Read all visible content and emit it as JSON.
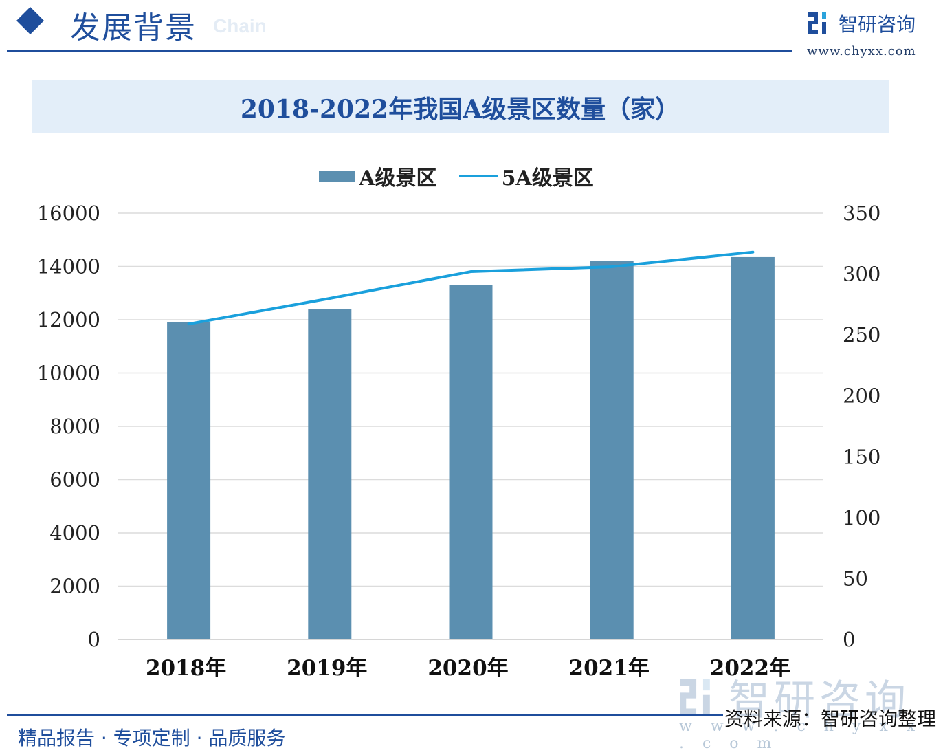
{
  "header": {
    "title": "发展背景",
    "ghost_text": "Chain",
    "brand_name": "智研咨询",
    "brand_url": "www.chyxx.com",
    "accent_color": "#1f4e9c",
    "logo_icon": "zhiyan-logo-icon"
  },
  "chart_data": {
    "type": "bar",
    "title": "2018-2022年我国A级景区数量（家）",
    "categories": [
      "2018年",
      "2019年",
      "2020年",
      "2021年",
      "2022年"
    ],
    "series": [
      {
        "name": "A级景区",
        "kind": "bar",
        "axis": "left",
        "color": "#5b8fb0",
        "values": [
          11900,
          12400,
          13300,
          14200,
          14350
        ]
      },
      {
        "name": "5A级景区",
        "kind": "line",
        "axis": "right",
        "color": "#1aa0dc",
        "values": [
          259,
          280,
          302,
          306,
          318
        ]
      }
    ],
    "y_left": {
      "ylim": [
        0,
        16000
      ],
      "ticks": [
        "0",
        "2000",
        "4000",
        "6000",
        "8000",
        "10000",
        "12000",
        "14000",
        "16000"
      ]
    },
    "y_right": {
      "ylim": [
        0,
        350
      ],
      "ticks": [
        "0",
        "50",
        "100",
        "150",
        "200",
        "250",
        "300",
        "350"
      ]
    },
    "grid": true,
    "legend_position": "top-center"
  },
  "footer": {
    "slogan": "精品报告 · 专项定制 · 品质服务",
    "source": "资料来源：智研咨询整理"
  },
  "watermark": {
    "name": "智研咨询",
    "url": "w w w . c h y x x . c o m"
  }
}
